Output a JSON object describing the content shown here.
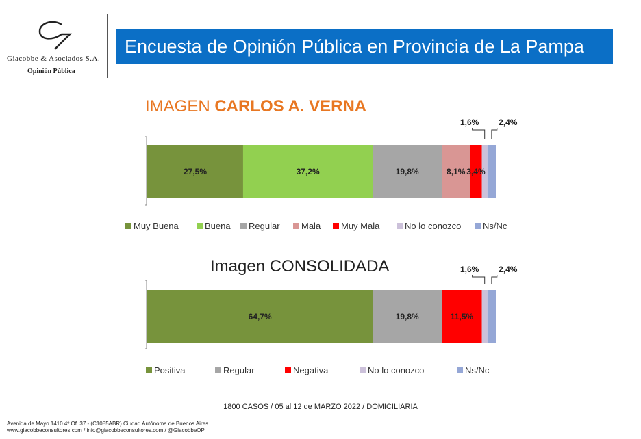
{
  "header": {
    "logo_name": "Giacobbe & Asociados S.A.",
    "logo_sub": "Opinión Pública",
    "banner_title": "Encuesta de Opinión Pública en Provincia de La Pampa"
  },
  "chart_data": [
    {
      "type": "bar",
      "orientation": "horizontal-stacked-100",
      "title_prefix": "IMAGEN ",
      "title_bold": "CARLOS A. VERNA",
      "series": [
        {
          "name": "Muy Buena",
          "value": 27.5,
          "label": "27,5%",
          "color": "#77933c"
        },
        {
          "name": "Buena",
          "value": 37.2,
          "label": "37,2%",
          "color": "#92d050"
        },
        {
          "name": "Regular",
          "value": 19.8,
          "label": "19,8%",
          "color": "#a6a6a6"
        },
        {
          "name": "Mala",
          "value": 8.1,
          "label": "8,1%",
          "color": "#d99694"
        },
        {
          "name": "Muy Mala",
          "value": 3.4,
          "label": "3,4%",
          "color": "#ff0000"
        },
        {
          "name": "No lo conozco",
          "value": 1.6,
          "label": "1,6%",
          "color": "#ccc1da"
        },
        {
          "name": "Ns/Nc",
          "value": 2.4,
          "label": "2,4%",
          "color": "#95a7d6"
        }
      ]
    },
    {
      "type": "bar",
      "orientation": "horizontal-stacked-100",
      "title": "Imagen CONSOLIDADA",
      "series": [
        {
          "name": "Positiva",
          "value": 64.7,
          "label": "64,7%",
          "color": "#77933c"
        },
        {
          "name": "Regular",
          "value": 19.8,
          "label": "19,8%",
          "color": "#a6a6a6"
        },
        {
          "name": "Negativa",
          "value": 11.5,
          "label": "11,5%",
          "color": "#ff0000"
        },
        {
          "name": "No lo conozco",
          "value": 1.6,
          "label": "1,6%",
          "color": "#ccc1da"
        },
        {
          "name": "Ns/Nc",
          "value": 2.4,
          "label": "2,4%",
          "color": "#95a7d6"
        }
      ]
    }
  ],
  "footer": {
    "cases": "1800 CASOS / 05 al 12 de MARZO 2022 / DOMICILIARIA",
    "address_line1": "Avenida de Mayo 1410 4º Of. 37 - (C1085ABR) Ciudad Autónoma de Buenos Aires",
    "address_line2": "www.giacobbeconsultores.com / info@giacobbeconsultores.com / @GiacobbeOP"
  }
}
